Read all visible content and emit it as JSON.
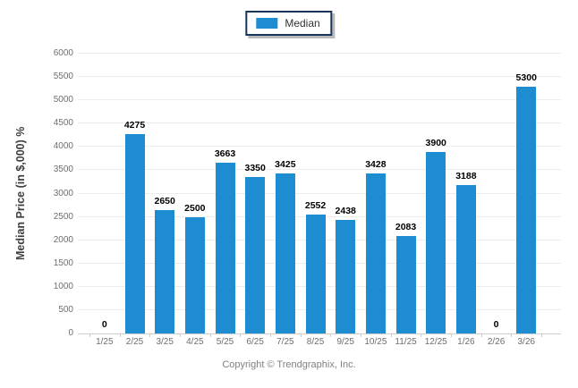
{
  "chart_data": {
    "type": "bar",
    "title": "",
    "legend": [
      "Median"
    ],
    "legend_position": "top-center",
    "categories": [
      "1/25",
      "2/25",
      "3/25",
      "4/25",
      "5/25",
      "6/25",
      "7/25",
      "8/25",
      "9/25",
      "10/25",
      "11/25",
      "12/25",
      "1/26",
      "2/26",
      "3/26"
    ],
    "values": [
      0,
      4275,
      2650,
      2500,
      3663,
      3350,
      3425,
      2552,
      2438,
      3428,
      2083,
      3900,
      3188,
      0,
      5300
    ],
    "xlabel": "",
    "ylabel": "Median Price (in $,000) %",
    "ylim": [
      0,
      6000
    ],
    "ytick_step": 500,
    "grid": true,
    "bar_color": "#1e8cd1"
  },
  "footer": {
    "copyright": "Copyright © Trendgraphix, Inc."
  },
  "colors": {
    "bar": "#1e8cd1",
    "legend_border": "#16365c",
    "gridline": "#ececec",
    "axis_line": "#cdcdcd",
    "tick_label": "#6e6e6e",
    "value_label": "#000000",
    "axis_title": "#3f3f3f",
    "copyright": "#808080"
  }
}
